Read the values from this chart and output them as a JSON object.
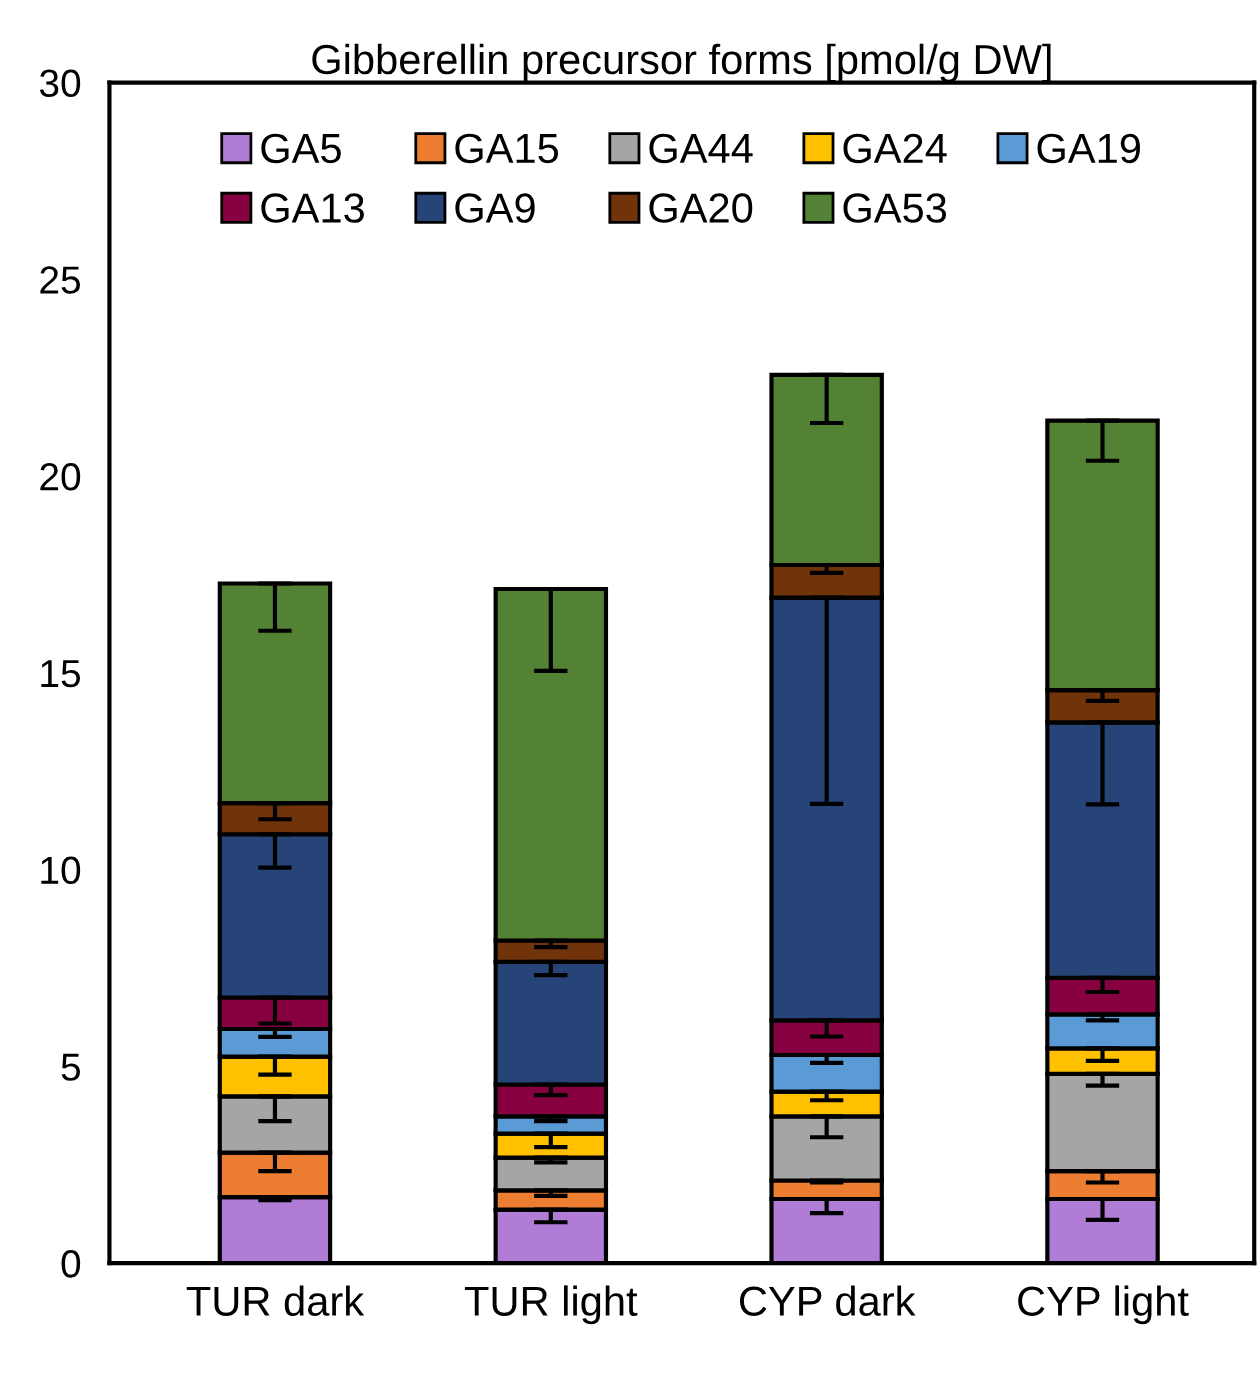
{
  "chart_data": {
    "type": "bar",
    "title": "Gibberellin precursor forms [pmol/g DW]",
    "stacked": true,
    "categories": [
      "TUR dark",
      "TUR light",
      "CYP dark",
      "CYP light"
    ],
    "series": [
      {
        "name": "GA5",
        "color": "#b07cd6",
        "values": [
          1.68,
          1.36,
          1.63,
          1.63
        ],
        "errors": [
          [
            1.6,
            1.68
          ],
          [
            1.04,
            1.36
          ],
          [
            1.27,
            1.63
          ],
          [
            1.1,
            1.63
          ]
        ]
      },
      {
        "name": "GA15",
        "color": "#ed7d31",
        "values": [
          1.13,
          0.49,
          0.47,
          0.71
        ],
        "errors": [
          [
            2.34,
            2.81
          ],
          [
            1.71,
            1.85
          ],
          [
            2.05,
            2.1
          ],
          [
            2.05,
            2.34
          ]
        ]
      },
      {
        "name": "GA44",
        "color": "#a5a5a5",
        "values": [
          1.43,
          0.83,
          1.63,
          2.47
        ],
        "errors": [
          [
            3.61,
            4.24
          ],
          [
            2.56,
            2.68
          ],
          [
            3.2,
            3.73
          ],
          [
            4.51,
            4.81
          ]
        ]
      },
      {
        "name": "GA24",
        "color": "#ffc000",
        "values": [
          1.01,
          0.61,
          0.63,
          0.65
        ],
        "errors": [
          [
            4.79,
            5.25
          ],
          [
            2.95,
            3.29
          ],
          [
            4.14,
            4.36
          ],
          [
            5.14,
            5.46
          ]
        ]
      },
      {
        "name": "GA19",
        "color": "#5b9bd5",
        "values": [
          0.7,
          0.44,
          0.93,
          0.86
        ],
        "errors": [
          [
            5.75,
            5.95
          ],
          [
            3.61,
            3.73
          ],
          [
            5.09,
            5.29
          ],
          [
            6.17,
            6.32
          ]
        ]
      },
      {
        "name": "GA13",
        "color": "#870040",
        "values": [
          0.8,
          0.81,
          0.88,
          0.93
        ],
        "errors": [
          [
            6.09,
            6.75
          ],
          [
            4.27,
            4.54
          ],
          [
            5.76,
            6.17
          ],
          [
            6.89,
            7.25
          ]
        ]
      },
      {
        "name": "GA9",
        "color": "#264478",
        "values": [
          4.15,
          3.12,
          10.74,
          6.49
        ],
        "errors": [
          [
            10.05,
            10.9
          ],
          [
            7.32,
            7.66
          ],
          [
            11.67,
            16.91
          ],
          [
            11.66,
            13.74
          ]
        ]
      },
      {
        "name": "GA20",
        "color": "#70330a",
        "values": [
          0.79,
          0.54,
          0.83,
          0.82
        ],
        "errors": [
          [
            11.28,
            11.69
          ],
          [
            8.03,
            8.2
          ],
          [
            17.54,
            17.74
          ],
          [
            14.29,
            14.56
          ]
        ]
      },
      {
        "name": "GA53",
        "color": "#548235",
        "values": [
          5.58,
          8.93,
          4.83,
          6.85
        ],
        "errors": [
          [
            16.07,
            17.27
          ],
          [
            15.05,
            17.13
          ],
          [
            21.35,
            22.57
          ],
          [
            20.39,
            21.41
          ]
        ]
      }
    ],
    "ylim": [
      0,
      30
    ],
    "yticks": [
      0,
      5,
      10,
      15,
      20,
      25,
      30
    ],
    "grid": false,
    "legend": "top"
  }
}
